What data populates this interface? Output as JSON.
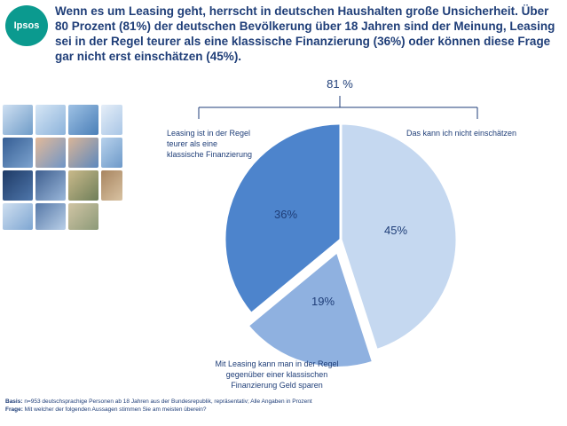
{
  "brand": {
    "logo_text": "Ipsos",
    "accent": "#0b9a8f"
  },
  "title": "Wenn es um Leasing geht, herrscht in deutschen Haushalten große Unsicherheit. Über 80 Prozent (81%) der deutschen Bevölkerung über 18 Jahren sind der Meinung, Leasing sei in der Regel teurer als eine klassische Finanzierung (36%) oder können diese Frage gar nicht erst einschätzen (45%).",
  "chart_data": {
    "type": "pie",
    "slices": [
      {
        "label": [
          "Das kann ich nicht einschätzen"
        ],
        "value": 45,
        "display": "45%",
        "color": "#c5d8f0"
      },
      {
        "label": [
          "Mit Leasing kann man in der Regel",
          "gegenüber einer klassischen",
          "Finanzierung Geld sparen"
        ],
        "value": 19,
        "display": "19%",
        "color": "#8fb1e0"
      },
      {
        "label": [
          "Leasing ist in der Regel",
          "teurer als eine",
          "klassische Finanzierung"
        ],
        "value": 36,
        "display": "36%",
        "color": "#4d84cc"
      }
    ],
    "bracket_label": "81 %"
  },
  "footer": {
    "basis_label": "Basis:",
    "basis_text": " n=953 deutschsprachige Personen ab 18 Jahren aus der Bundesrepublik, repräsentativ; Alle Angaben in Prozent",
    "frage_label": "Frage:",
    "frage_text": " Mit welcher der folgenden Aussagen stimmen Sie am meisten überein?"
  }
}
